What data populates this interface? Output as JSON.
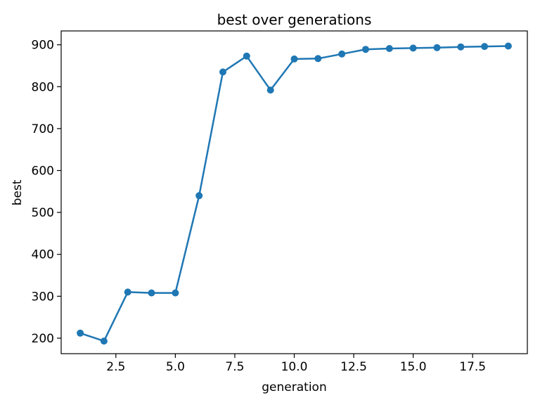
{
  "chart_data": {
    "type": "line",
    "title": "best over generations",
    "xlabel": "generation",
    "ylabel": "best",
    "series": [
      {
        "name": "best",
        "color": "#1f77b4",
        "marker": "circle",
        "x": [
          1,
          2,
          3,
          4,
          5,
          6,
          7,
          8,
          9,
          10,
          11,
          12,
          13,
          14,
          15,
          16,
          17,
          18,
          19
        ],
        "y": [
          212,
          193,
          310,
          308,
          308,
          540,
          835,
          873,
          792,
          866,
          867,
          878,
          889,
          891,
          892,
          893,
          895,
          896,
          897
        ]
      }
    ],
    "xticks": [
      2.5,
      5.0,
      7.5,
      10.0,
      12.5,
      15.0,
      17.5
    ],
    "xtick_labels": [
      "2.5",
      "5.0",
      "7.5",
      "10.0",
      "12.5",
      "15.0",
      "17.5"
    ],
    "yticks": [
      200,
      300,
      400,
      500,
      600,
      700,
      800,
      900
    ],
    "ytick_labels": [
      "200",
      "300",
      "400",
      "500",
      "600",
      "700",
      "800",
      "900"
    ],
    "xlim": [
      0.2,
      19.8
    ],
    "ylim": [
      163,
      933
    ],
    "grid": false,
    "legend": null,
    "frame_color": "#000000",
    "tick_color": "#000000",
    "background": "#ffffff"
  }
}
